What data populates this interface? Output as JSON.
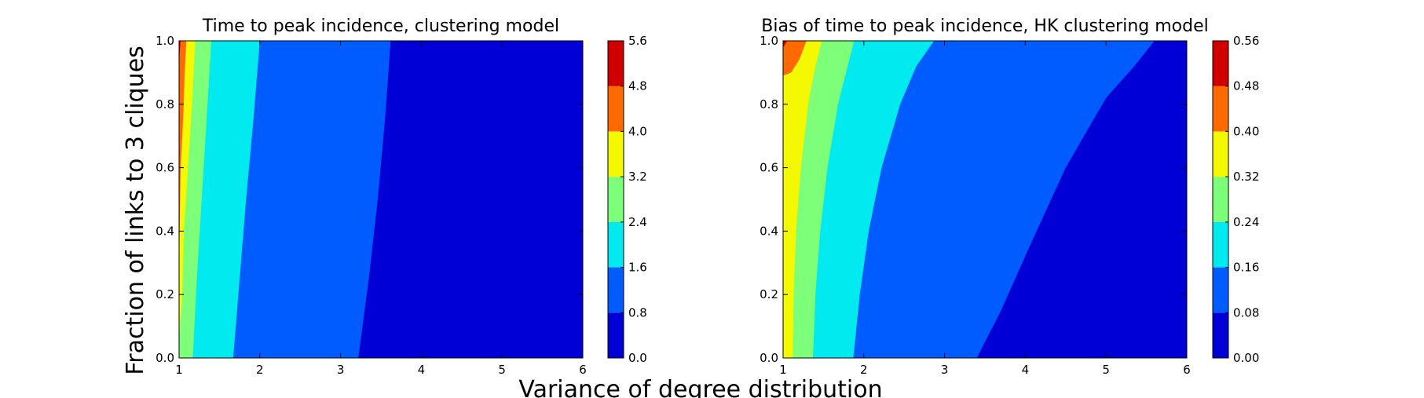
{
  "figure": {
    "ylabel": "Fraction of links to 3 cliques",
    "xlabel": "Variance of degree distribution"
  },
  "chart_data": [
    {
      "type": "contourf",
      "title": "Time to peak incidence, clustering model",
      "xlim": [
        1,
        6
      ],
      "ylim": [
        0.0,
        1.0
      ],
      "xticks": [
        "1",
        "2",
        "3",
        "4",
        "5",
        "6"
      ],
      "yticks": [
        "0.0",
        "0.2",
        "0.4",
        "0.6",
        "0.8",
        "1.0"
      ],
      "colorbar": {
        "levels": [
          0.0,
          0.8,
          1.6,
          2.4,
          3.2,
          4.0,
          4.8,
          5.6
        ],
        "ticklabels": [
          "0.0",
          "0.8",
          "1.6",
          "2.4",
          "3.2",
          "4.0",
          "4.8",
          "5.6"
        ]
      },
      "bands": [
        {
          "range": [
            0.0,
            0.8
          ],
          "color": "#0000d6"
        },
        {
          "range": [
            0.8,
            1.6
          ],
          "color": "#005cff"
        },
        {
          "range": [
            1.6,
            2.4
          ],
          "color": "#00eaf0"
        },
        {
          "range": [
            2.4,
            3.2
          ],
          "color": "#7dff7a"
        },
        {
          "range": [
            3.2,
            4.0
          ],
          "color": "#f4f800"
        },
        {
          "range": [
            4.0,
            4.8
          ],
          "color": "#ff6a00"
        },
        {
          "range": [
            4.8,
            5.6
          ],
          "color": "#d00000"
        }
      ],
      "contours": [
        {
          "level": 0.8,
          "points": [
            [
              3.22,
              0.0
            ],
            [
              3.35,
              0.25
            ],
            [
              3.46,
              0.5
            ],
            [
              3.55,
              0.75
            ],
            [
              3.62,
              1.0
            ]
          ]
        },
        {
          "level": 1.6,
          "points": [
            [
              1.67,
              0.0
            ],
            [
              1.75,
              0.25
            ],
            [
              1.83,
              0.5
            ],
            [
              1.92,
              0.75
            ],
            [
              2.0,
              1.0
            ]
          ]
        },
        {
          "level": 2.4,
          "points": [
            [
              1.17,
              0.0
            ],
            [
              1.22,
              0.25
            ],
            [
              1.28,
              0.5
            ],
            [
              1.34,
              0.75
            ],
            [
              1.4,
              1.0
            ]
          ]
        },
        {
          "level": 3.2,
          "points": [
            [
              1.04,
              0.2
            ],
            [
              1.06,
              0.4
            ],
            [
              1.11,
              0.6
            ],
            [
              1.16,
              0.8
            ],
            [
              1.2,
              1.0
            ]
          ]
        },
        {
          "level": 4.0,
          "points": [
            [
              1.02,
              0.6
            ],
            [
              1.05,
              0.75
            ],
            [
              1.07,
              0.9
            ],
            [
              1.09,
              1.0
            ]
          ]
        },
        {
          "level": 4.8,
          "points": [
            [
              1.0,
              0.93
            ],
            [
              1.01,
              0.97
            ],
            [
              1.02,
              1.0
            ]
          ]
        }
      ]
    },
    {
      "type": "contourf",
      "title": "Bias of time to peak incidence, HK clustering model",
      "xlim": [
        1,
        6
      ],
      "ylim": [
        0.0,
        1.0
      ],
      "xticks": [
        "1",
        "2",
        "3",
        "4",
        "5",
        "6"
      ],
      "yticks": [
        "0.0",
        "0.2",
        "0.4",
        "0.6",
        "0.8",
        "1.0"
      ],
      "colorbar": {
        "levels": [
          0.0,
          0.08,
          0.16,
          0.24,
          0.32,
          0.4,
          0.48,
          0.56
        ],
        "ticklabels": [
          "0.00",
          "0.08",
          "0.16",
          "0.24",
          "0.32",
          "0.40",
          "0.48",
          "0.56"
        ]
      },
      "bands": [
        {
          "range": [
            0.0,
            0.08
          ],
          "color": "#0000d6"
        },
        {
          "range": [
            0.08,
            0.16
          ],
          "color": "#005cff"
        },
        {
          "range": [
            0.16,
            0.24
          ],
          "color": "#00eaf0"
        },
        {
          "range": [
            0.24,
            0.32
          ],
          "color": "#7dff7a"
        },
        {
          "range": [
            0.32,
            0.4
          ],
          "color": "#f4f800"
        },
        {
          "range": [
            0.4,
            0.48
          ],
          "color": "#ff6a00"
        },
        {
          "range": [
            0.48,
            0.56
          ],
          "color": "#d00000"
        }
      ],
      "contours": [
        {
          "level": 0.08,
          "points": [
            [
              3.4,
              0.0
            ],
            [
              3.7,
              0.15
            ],
            [
              4.05,
              0.35
            ],
            [
              4.5,
              0.6
            ],
            [
              5.0,
              0.82
            ],
            [
              5.35,
              0.92
            ],
            [
              5.6,
              1.0
            ]
          ]
        },
        {
          "level": 0.16,
          "points": [
            [
              1.87,
              0.0
            ],
            [
              1.95,
              0.2
            ],
            [
              2.06,
              0.4
            ],
            [
              2.22,
              0.6
            ],
            [
              2.45,
              0.8
            ],
            [
              2.65,
              0.92
            ],
            [
              2.87,
              1.0
            ]
          ]
        },
        {
          "level": 0.24,
          "points": [
            [
              1.37,
              0.0
            ],
            [
              1.4,
              0.2
            ],
            [
              1.46,
              0.4
            ],
            [
              1.55,
              0.6
            ],
            [
              1.68,
              0.8
            ],
            [
              1.8,
              0.92
            ],
            [
              1.88,
              1.0
            ]
          ]
        },
        {
          "level": 0.32,
          "points": [
            [
              1.12,
              0.0
            ],
            [
              1.13,
              0.2
            ],
            [
              1.16,
              0.4
            ],
            [
              1.22,
              0.6
            ],
            [
              1.31,
              0.8
            ],
            [
              1.4,
              0.92
            ],
            [
              1.48,
              1.0
            ]
          ]
        },
        {
          "level": 0.4,
          "points": [
            [
              1.0,
              0.89
            ],
            [
              1.1,
              0.9
            ],
            [
              1.2,
              0.94
            ],
            [
              1.26,
              0.98
            ],
            [
              1.29,
              1.0
            ]
          ]
        },
        {
          "level": 0.48,
          "points": [
            [
              1.0,
              0.98
            ],
            [
              1.03,
              0.99
            ],
            [
              1.05,
              1.0
            ]
          ]
        }
      ]
    }
  ]
}
